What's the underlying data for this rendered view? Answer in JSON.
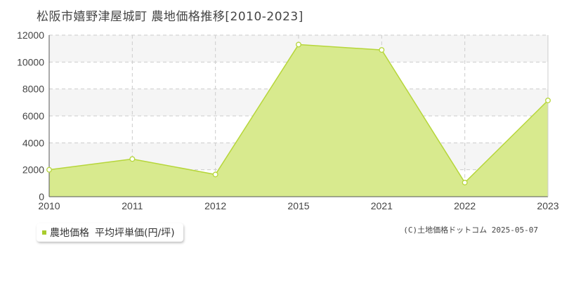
{
  "title": "松阪市嬉野津屋城町 農地価格推移[2010-2023]",
  "chart_data": {
    "type": "area",
    "categories": [
      "2010",
      "2011",
      "2012",
      "2015",
      "2021",
      "2022",
      "2023"
    ],
    "series": [
      {
        "name": "農地価格",
        "values": [
          2000,
          2800,
          1650,
          11300,
          10900,
          1050,
          7150
        ]
      }
    ],
    "y_ticks": [
      "0",
      "2000",
      "4000",
      "6000",
      "8000",
      "10000",
      "12000"
    ],
    "ylim": [
      0,
      12000
    ],
    "grid": true,
    "legend_position": "bottom-left"
  },
  "legend": {
    "series_label": "農地価格",
    "suffix": "平均坪単価(円/坪)"
  },
  "copyright": "(C)土地価格ドットコム 2025-05-07",
  "colors": {
    "fill": "#d8ea8e",
    "line": "#b6d63a",
    "legend_marker": "#a9cc2e",
    "band": "#f5f5f5",
    "grid": "#cccccc",
    "axis": "#555555"
  }
}
